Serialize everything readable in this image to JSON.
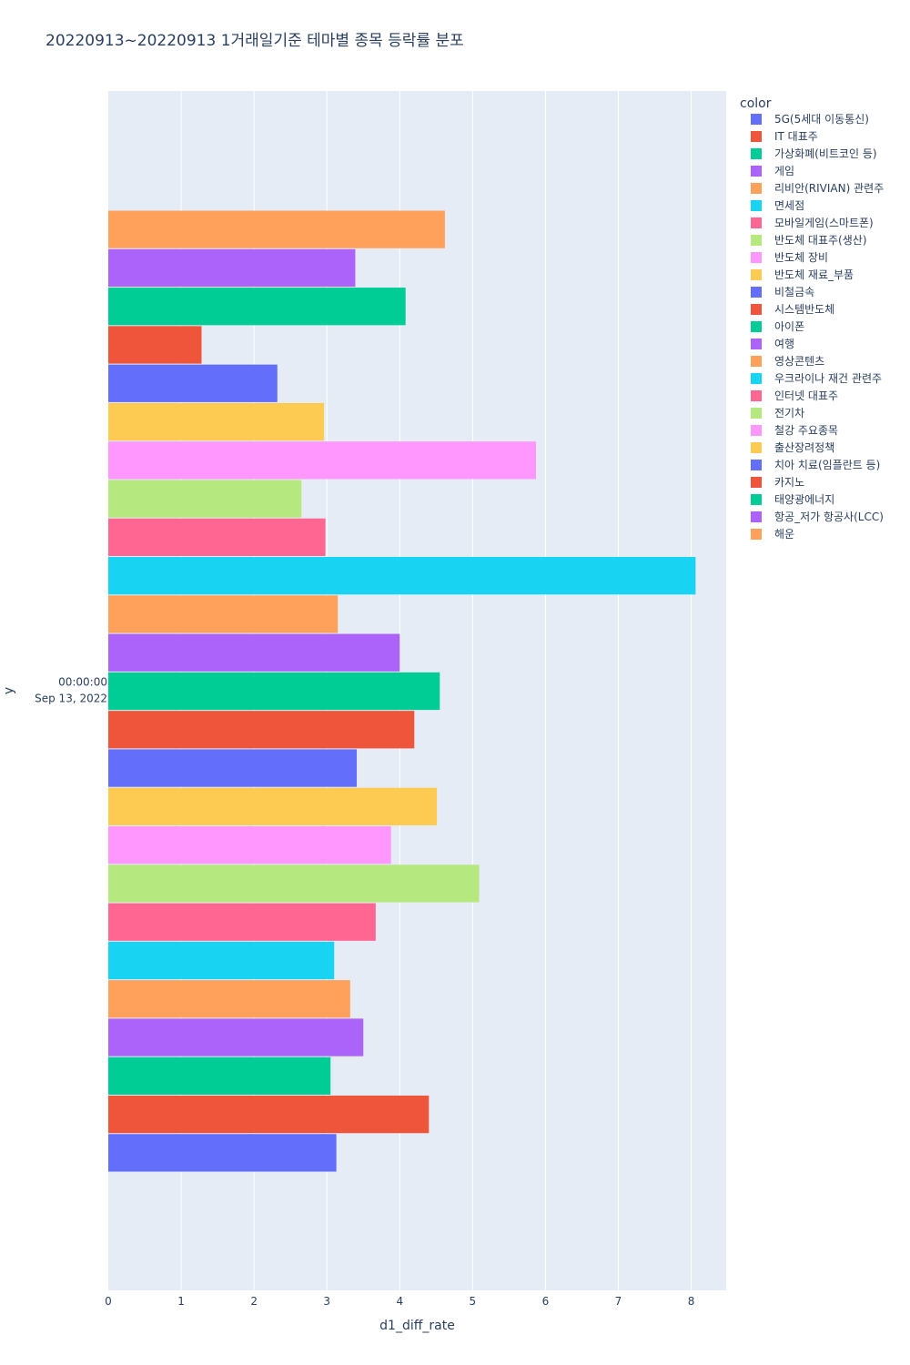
{
  "chart_data": {
    "type": "bar",
    "orientation": "horizontal",
    "barmode": "group",
    "title": "20220913~20220913 1거래일기준 테마별 종목 등락률 분포",
    "xlabel": "d1_diff_rate",
    "ylabel": "y",
    "xlim": [
      0,
      8.48
    ],
    "x_ticks": [
      "0",
      "1",
      "2",
      "3",
      "4",
      "5",
      "6",
      "7",
      "8"
    ],
    "y_category_label": [
      "00:00:00",
      "Sep 13, 2022"
    ],
    "legend_title": "color",
    "legend_position": "right",
    "grid": true,
    "series": [
      {
        "name": "5G(5세대 이동통신)",
        "color": "#636efa",
        "value": 3.13
      },
      {
        "name": "IT 대표주",
        "color": "#EF553B",
        "value": 4.4
      },
      {
        "name": "가상화폐(비트코인 등)",
        "color": "#00cc96",
        "value": 3.05
      },
      {
        "name": "게임",
        "color": "#ab63fa",
        "value": 3.5
      },
      {
        "name": "리비안(RIVIAN) 관련주",
        "color": "#FFA15A",
        "value": 3.32
      },
      {
        "name": "면세점",
        "color": "#19d3f3",
        "value": 3.1
      },
      {
        "name": "모바일게임(스마트폰)",
        "color": "#FF6692",
        "value": 3.67
      },
      {
        "name": "반도체 대표주(생산)",
        "color": "#B6E880",
        "value": 5.09
      },
      {
        "name": "반도체 장비",
        "color": "#FF97FF",
        "value": 3.88
      },
      {
        "name": "반도체 재료_부품",
        "color": "#FECB52",
        "value": 4.51
      },
      {
        "name": "비철금속",
        "color": "#636efa",
        "value": 3.41
      },
      {
        "name": "시스템반도체",
        "color": "#EF553B",
        "value": 4.2
      },
      {
        "name": "아이폰",
        "color": "#00cc96",
        "value": 4.55
      },
      {
        "name": "여행",
        "color": "#ab63fa",
        "value": 4.0
      },
      {
        "name": "영상콘텐츠",
        "color": "#FFA15A",
        "value": 3.15
      },
      {
        "name": "우크라이나 재건 관련주",
        "color": "#19d3f3",
        "value": 8.06
      },
      {
        "name": "인터넷 대표주",
        "color": "#FF6692",
        "value": 2.98
      },
      {
        "name": "전기차",
        "color": "#B6E880",
        "value": 2.65
      },
      {
        "name": "철강 주요종목",
        "color": "#FF97FF",
        "value": 5.87
      },
      {
        "name": "출산장려정책",
        "color": "#FECB52",
        "value": 2.96
      },
      {
        "name": "치아 치료(임플란트 등)",
        "color": "#636efa",
        "value": 2.32
      },
      {
        "name": "카지노",
        "color": "#EF553B",
        "value": 1.28
      },
      {
        "name": "태양광에너지",
        "color": "#00cc96",
        "value": 4.08
      },
      {
        "name": "항공_저가 항공사(LCC)",
        "color": "#ab63fa",
        "value": 3.39
      },
      {
        "name": "해운",
        "color": "#FFA15A",
        "value": 4.62
      }
    ]
  }
}
